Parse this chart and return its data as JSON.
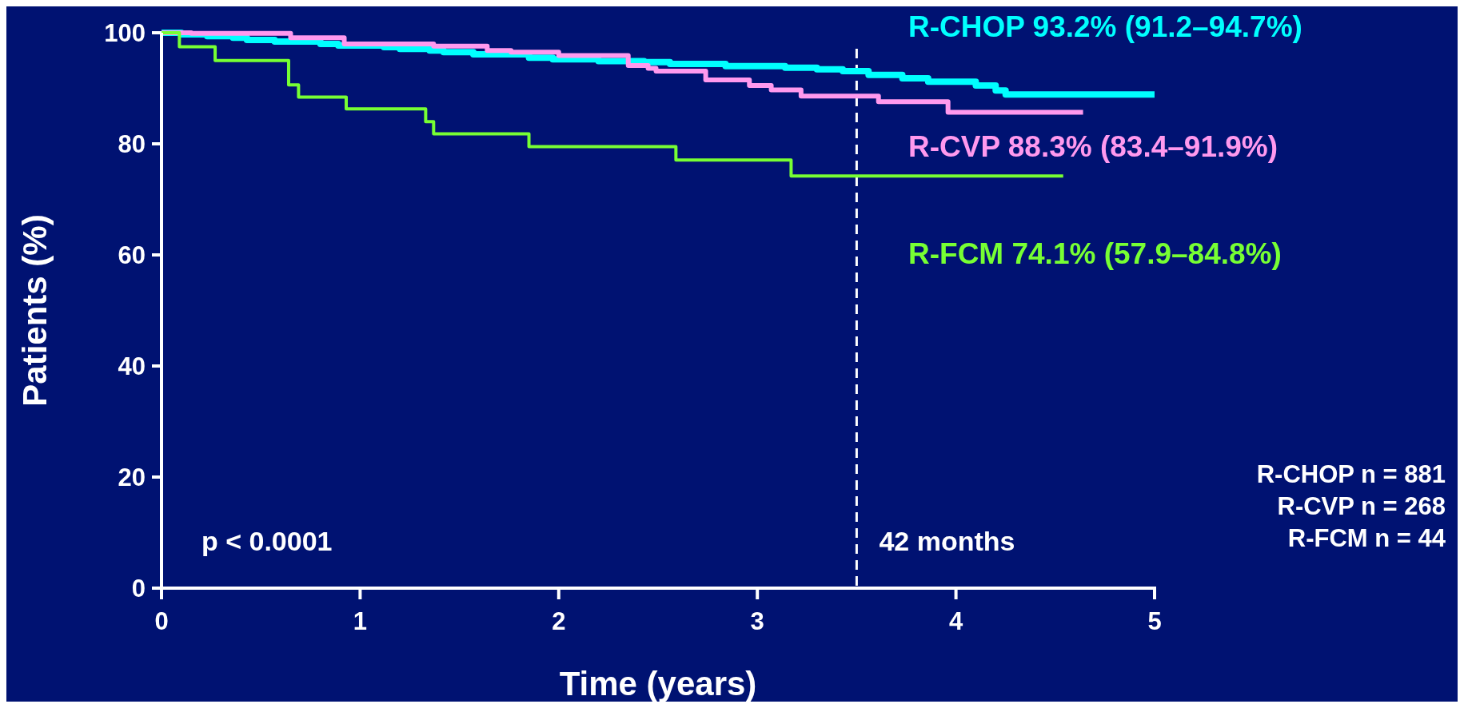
{
  "chart_data": {
    "type": "step",
    "xlabel": "Time (years)",
    "ylabel": "Patients (%)",
    "xlim": [
      0,
      5
    ],
    "xticks": [
      0,
      1,
      2,
      3,
      4,
      5
    ],
    "ylim": [
      0,
      100
    ],
    "yticks": [
      0,
      20,
      40,
      60,
      80,
      100
    ],
    "grid": false,
    "line_style": "solid",
    "marker": "none",
    "series": [
      {
        "name": "R-CHOP 93.2% (91.2–94.7%)",
        "color": "#00ffff",
        "x": [
          0,
          0.1,
          0.23,
          0.36,
          0.43,
          0.57,
          0.8,
          0.89,
          1.12,
          1.2,
          1.35,
          1.42,
          1.57,
          1.85,
          1.97,
          2.2,
          2.43,
          2.56,
          2.84,
          3.14,
          3.3,
          3.43,
          3.56,
          3.73,
          3.86,
          4.1,
          4.2,
          4.25,
          5.0
        ],
        "values": [
          100,
          99.7,
          99.4,
          99.1,
          98.7,
          98.4,
          98,
          97.7,
          97.4,
          97.1,
          96.8,
          96.5,
          96.1,
          95.5,
          95.2,
          94.9,
          94.7,
          94.4,
          94,
          93.7,
          93.4,
          93.1,
          92.4,
          91.8,
          91.2,
          90.5,
          89.6,
          88.9,
          88.9
        ]
      },
      {
        "name": "R-CVP 88.3% (83.4–91.9%)",
        "color": "#ff99ee",
        "x": [
          0,
          0.15,
          0.65,
          0.92,
          1.37,
          1.64,
          1.76,
          2.0,
          2.35,
          2.45,
          2.49,
          2.74,
          2.96,
          3.07,
          3.22,
          3.61,
          3.96,
          4.64
        ],
        "values": [
          100,
          99.9,
          99.1,
          98,
          97.6,
          96.8,
          96.5,
          95.9,
          94.1,
          93.6,
          93.1,
          91.5,
          90.5,
          89.7,
          88.6,
          87.6,
          85.7,
          85.7
        ]
      },
      {
        "name": "R-FCM 74.1% (57.9–84.8%)",
        "color": "#77ff33",
        "x": [
          0,
          0.09,
          0.27,
          0.64,
          0.69,
          0.93,
          1.33,
          1.37,
          1.85,
          2.59,
          3.17,
          4.54
        ],
        "values": [
          100,
          97.5,
          95,
          90.6,
          88.4,
          86.3,
          84,
          81.8,
          79.5,
          77.1,
          74.2,
          74.2
        ]
      }
    ],
    "ref_lines": [
      {
        "axis": "x",
        "value": 3.5,
        "label": "42 months",
        "color": "#ffffff",
        "line_style": "dashed"
      }
    ],
    "annotations": [
      "p < 0.0001",
      "R-CHOP n = 881",
      "R-CVP n = 268",
      "R-FCM n = 44"
    ]
  }
}
